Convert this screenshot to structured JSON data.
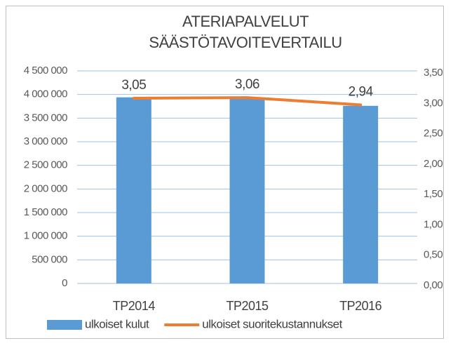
{
  "chart_data": {
    "type": "bar",
    "title": [
      "ATERIAPALVELUT",
      "SÄÄSTÖTAVOITEVERTAILU"
    ],
    "categories": [
      "TP2014",
      "TP2015",
      "TP2016"
    ],
    "series": [
      {
        "name": "ulkoiset kulut",
        "type": "bar",
        "color": "#5b9bd5",
        "values": [
          3940000,
          3910000,
          3760000
        ]
      },
      {
        "name": "ulkoiset suoritekustannukset",
        "type": "line",
        "axis": "y2",
        "color": "#ed7d31",
        "values": [
          3.05,
          3.06,
          2.94
        ],
        "value_labels": [
          "3,05",
          "3,06",
          "2,94"
        ]
      }
    ],
    "ylim": [
      0,
      4500000
    ],
    "yticks": [
      0,
      {
        "value": 500000,
        "label": "500 000"
      },
      {
        "value": 1000000,
        "label": "1 000 000"
      },
      {
        "value": 1500000,
        "label": "1 500 000"
      },
      {
        "value": 2000000,
        "label": "2 000 000"
      },
      {
        "value": 2500000,
        "label": "2 500 000"
      },
      {
        "value": 3000000,
        "label": "3 000 000"
      },
      {
        "value": 3500000,
        "label": "3 500 000"
      },
      {
        "value": 4000000,
        "label": "4 000 000"
      },
      {
        "value": 4500000,
        "label": "4 500 000"
      }
    ],
    "y2lim": [
      0,
      3.5
    ],
    "y2ticks": [
      {
        "value": 0,
        "label": "0,00"
      },
      {
        "value": 0.5,
        "label": "0,50"
      },
      {
        "value": 1,
        "label": "1,00"
      },
      {
        "value": 1.5,
        "label": "1,50"
      },
      {
        "value": 2,
        "label": "2,00"
      },
      {
        "value": 2.5,
        "label": "2,50"
      },
      {
        "value": 3,
        "label": "3,00"
      },
      {
        "value": 3.5,
        "label": "3,50"
      }
    ],
    "grid": true,
    "legend": "bottom"
  }
}
